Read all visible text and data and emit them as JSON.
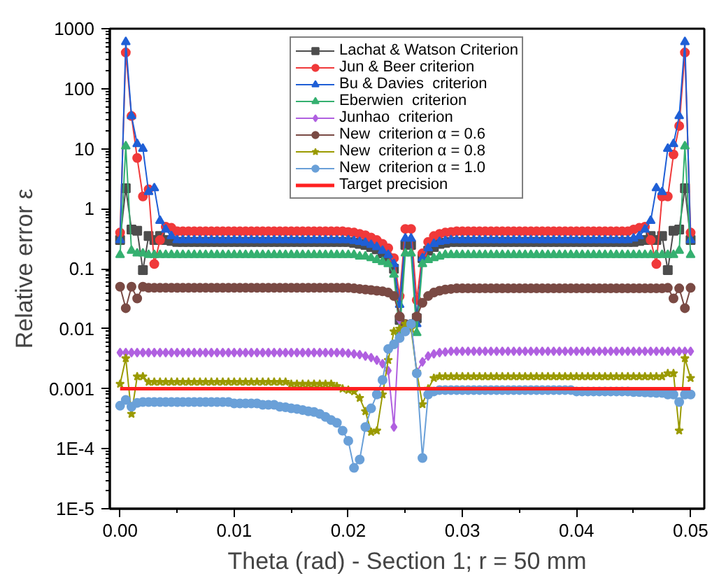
{
  "chart_data": {
    "type": "line",
    "xlabel": "Theta (rad) - Section 1; r = 50 mm",
    "ylabel": "Relative error ε",
    "x": [
      0,
      0.0005,
      0.001,
      0.0015,
      0.002,
      0.0025,
      0.003,
      0.0035,
      0.004,
      0.0045,
      0.005,
      0.0055,
      0.006,
      0.0065,
      0.007,
      0.0075,
      0.008,
      0.0085,
      0.009,
      0.0095,
      0.01,
      0.0105,
      0.011,
      0.0115,
      0.012,
      0.0125,
      0.013,
      0.0135,
      0.014,
      0.0145,
      0.015,
      0.0155,
      0.016,
      0.0165,
      0.017,
      0.0175,
      0.018,
      0.0185,
      0.019,
      0.0195,
      0.02,
      0.0205,
      0.021,
      0.0215,
      0.022,
      0.0225,
      0.023,
      0.0235,
      0.024,
      0.0245,
      0.025,
      0.0255,
      0.026,
      0.0265,
      0.027,
      0.0275,
      0.028,
      0.0285,
      0.029,
      0.0295,
      0.03,
      0.0305,
      0.031,
      0.0315,
      0.032,
      0.0325,
      0.033,
      0.0335,
      0.034,
      0.0345,
      0.035,
      0.0355,
      0.036,
      0.0365,
      0.037,
      0.0375,
      0.038,
      0.0385,
      0.039,
      0.0395,
      0.04,
      0.0405,
      0.041,
      0.0415,
      0.042,
      0.0425,
      0.043,
      0.0435,
      0.044,
      0.0445,
      0.045,
      0.0455,
      0.046,
      0.0465,
      0.047,
      0.0475,
      0.048,
      0.0485,
      0.049,
      0.0495,
      0.05
    ],
    "series": [
      {
        "name": "Lachat & Watson Criterion",
        "color": "#4d4d4d",
        "marker": "square",
        "values": [
          0.3,
          2.2,
          0.45,
          0.43,
          0.095,
          0.35,
          0.3,
          0.35,
          0.3,
          0.29,
          0.28,
          0.28,
          0.28,
          0.28,
          0.28,
          0.28,
          0.28,
          0.28,
          0.28,
          0.28,
          0.28,
          0.28,
          0.28,
          0.28,
          0.28,
          0.28,
          0.28,
          0.28,
          0.28,
          0.28,
          0.28,
          0.28,
          0.28,
          0.28,
          0.28,
          0.28,
          0.28,
          0.28,
          0.28,
          0.28,
          0.28,
          0.27,
          0.26,
          0.25,
          0.23,
          0.21,
          0.18,
          0.15,
          0.1,
          0.014,
          0.25,
          0.25,
          0.015,
          0.15,
          0.2,
          0.23,
          0.26,
          0.27,
          0.28,
          0.28,
          0.28,
          0.28,
          0.28,
          0.28,
          0.28,
          0.28,
          0.28,
          0.28,
          0.28,
          0.28,
          0.28,
          0.28,
          0.28,
          0.28,
          0.28,
          0.28,
          0.28,
          0.28,
          0.28,
          0.28,
          0.28,
          0.28,
          0.28,
          0.28,
          0.28,
          0.28,
          0.28,
          0.28,
          0.28,
          0.28,
          0.28,
          0.29,
          0.3,
          0.35,
          0.3,
          0.35,
          0.095,
          0.43,
          0.45,
          2.2,
          0.3
        ]
      },
      {
        "name": "Jun & Beer criterion",
        "color": "#f0393a",
        "marker": "circle",
        "values": [
          0.4,
          400,
          35,
          7,
          1.6,
          2.1,
          0.12,
          0.3,
          0.5,
          0.48,
          0.42,
          0.42,
          0.42,
          0.42,
          0.42,
          0.42,
          0.42,
          0.42,
          0.42,
          0.42,
          0.42,
          0.42,
          0.42,
          0.42,
          0.42,
          0.42,
          0.42,
          0.42,
          0.42,
          0.42,
          0.42,
          0.42,
          0.42,
          0.42,
          0.42,
          0.42,
          0.42,
          0.42,
          0.42,
          0.42,
          0.41,
          0.4,
          0.38,
          0.36,
          0.33,
          0.3,
          0.26,
          0.22,
          0.15,
          0.035,
          0.46,
          0.46,
          0.03,
          0.18,
          0.28,
          0.35,
          0.38,
          0.4,
          0.41,
          0.42,
          0.42,
          0.42,
          0.42,
          0.42,
          0.42,
          0.42,
          0.42,
          0.42,
          0.42,
          0.42,
          0.42,
          0.42,
          0.42,
          0.42,
          0.42,
          0.42,
          0.42,
          0.42,
          0.42,
          0.42,
          0.42,
          0.42,
          0.42,
          0.42,
          0.42,
          0.42,
          0.42,
          0.42,
          0.42,
          0.42,
          0.45,
          0.48,
          0.5,
          0.3,
          0.12,
          1.6,
          1.6,
          8,
          24,
          400,
          0.4
        ]
      },
      {
        "name": "Bu & Davies  criterion",
        "color": "#1f5fd6",
        "marker": "triangle",
        "values": [
          0.3,
          600,
          35,
          12,
          10,
          1.9,
          2.2,
          0.63,
          0.45,
          0.35,
          0.3,
          0.3,
          0.3,
          0.3,
          0.3,
          0.3,
          0.3,
          0.3,
          0.3,
          0.3,
          0.3,
          0.3,
          0.3,
          0.3,
          0.3,
          0.3,
          0.3,
          0.3,
          0.3,
          0.3,
          0.3,
          0.3,
          0.3,
          0.3,
          0.3,
          0.3,
          0.3,
          0.3,
          0.3,
          0.3,
          0.3,
          0.29,
          0.28,
          0.27,
          0.25,
          0.23,
          0.2,
          0.17,
          0.12,
          0.025,
          0.32,
          0.32,
          0.012,
          0.15,
          0.22,
          0.26,
          0.28,
          0.29,
          0.3,
          0.3,
          0.3,
          0.3,
          0.3,
          0.3,
          0.3,
          0.3,
          0.3,
          0.3,
          0.3,
          0.3,
          0.3,
          0.3,
          0.3,
          0.3,
          0.3,
          0.3,
          0.3,
          0.3,
          0.3,
          0.3,
          0.3,
          0.3,
          0.3,
          0.3,
          0.3,
          0.3,
          0.3,
          0.3,
          0.3,
          0.3,
          0.32,
          0.35,
          0.45,
          0.63,
          2.2,
          1.9,
          10,
          12,
          35,
          600,
          0.3
        ]
      },
      {
        "name": "Eberwien  criterion",
        "color": "#35b070",
        "marker": "triangle",
        "values": [
          0.17,
          11,
          0.2,
          0.18,
          0.18,
          0.17,
          0.17,
          0.17,
          0.17,
          0.17,
          0.17,
          0.17,
          0.17,
          0.17,
          0.17,
          0.17,
          0.17,
          0.17,
          0.17,
          0.17,
          0.17,
          0.17,
          0.17,
          0.17,
          0.17,
          0.17,
          0.17,
          0.17,
          0.17,
          0.17,
          0.17,
          0.17,
          0.17,
          0.17,
          0.17,
          0.17,
          0.17,
          0.17,
          0.17,
          0.17,
          0.17,
          0.17,
          0.16,
          0.16,
          0.15,
          0.14,
          0.13,
          0.12,
          0.08,
          0.0085,
          0.18,
          0.18,
          0.0085,
          0.12,
          0.14,
          0.15,
          0.16,
          0.17,
          0.17,
          0.17,
          0.17,
          0.17,
          0.17,
          0.17,
          0.17,
          0.17,
          0.17,
          0.17,
          0.17,
          0.17,
          0.17,
          0.17,
          0.17,
          0.17,
          0.17,
          0.17,
          0.17,
          0.17,
          0.17,
          0.17,
          0.17,
          0.17,
          0.17,
          0.17,
          0.17,
          0.17,
          0.17,
          0.17,
          0.17,
          0.17,
          0.17,
          0.17,
          0.17,
          0.17,
          0.17,
          0.17,
          0.17,
          0.17,
          0.2,
          11,
          0.17
        ]
      },
      {
        "name": "Junhao  criterion",
        "color": "#b060e0",
        "marker": "diamond",
        "values": [
          0.004,
          0.004,
          0.004,
          0.004,
          0.004,
          0.004,
          0.004,
          0.004,
          0.004,
          0.004,
          0.004,
          0.004,
          0.004,
          0.004,
          0.004,
          0.004,
          0.004,
          0.004,
          0.004,
          0.004,
          0.004,
          0.004,
          0.004,
          0.004,
          0.004,
          0.004,
          0.004,
          0.004,
          0.004,
          0.004,
          0.004,
          0.004,
          0.004,
          0.004,
          0.004,
          0.004,
          0.004,
          0.004,
          0.004,
          0.004,
          0.0039,
          0.0038,
          0.0037,
          0.0035,
          0.0033,
          0.003,
          0.0026,
          0.002,
          0.00023,
          0.014,
          0.012,
          0.012,
          0.0019,
          0.0028,
          0.0035,
          0.0038,
          0.004,
          0.0041,
          0.0042,
          0.0042,
          0.0042,
          0.0042,
          0.0042,
          0.0042,
          0.0042,
          0.0042,
          0.0042,
          0.0042,
          0.0042,
          0.0042,
          0.0042,
          0.0042,
          0.0042,
          0.0042,
          0.0042,
          0.0042,
          0.0042,
          0.0042,
          0.0042,
          0.0042,
          0.0042,
          0.0042,
          0.0042,
          0.0042,
          0.0042,
          0.0042,
          0.0042,
          0.0042,
          0.0042,
          0.0042,
          0.0042,
          0.0042,
          0.0042,
          0.0042,
          0.0042,
          0.0042,
          0.0042,
          0.0042,
          0.0042,
          0.0042,
          0.0042
        ]
      },
      {
        "name": "New  criterion α = 0.6",
        "color": "#7a4a44",
        "marker": "circle",
        "values": [
          0.05,
          0.022,
          0.05,
          0.032,
          0.05,
          0.048,
          0.048,
          0.048,
          0.048,
          0.048,
          0.048,
          0.048,
          0.048,
          0.048,
          0.048,
          0.048,
          0.048,
          0.048,
          0.048,
          0.048,
          0.048,
          0.048,
          0.048,
          0.048,
          0.048,
          0.048,
          0.048,
          0.048,
          0.048,
          0.048,
          0.048,
          0.048,
          0.048,
          0.048,
          0.048,
          0.048,
          0.048,
          0.048,
          0.048,
          0.048,
          0.048,
          0.047,
          0.046,
          0.045,
          0.044,
          0.043,
          0.042,
          0.04,
          0.035,
          0.016,
          0.012,
          0.012,
          0.016,
          0.027,
          0.035,
          0.04,
          0.043,
          0.045,
          0.046,
          0.047,
          0.047,
          0.047,
          0.047,
          0.047,
          0.047,
          0.047,
          0.047,
          0.047,
          0.047,
          0.047,
          0.047,
          0.047,
          0.047,
          0.047,
          0.047,
          0.047,
          0.047,
          0.047,
          0.047,
          0.047,
          0.047,
          0.047,
          0.047,
          0.047,
          0.047,
          0.047,
          0.047,
          0.047,
          0.047,
          0.047,
          0.047,
          0.047,
          0.047,
          0.047,
          0.047,
          0.047,
          0.048,
          0.032,
          0.047,
          0.022,
          0.048
        ]
      },
      {
        "name": "New  criterion α = 0.8",
        "color": "#9a9a00",
        "marker": "star",
        "values": [
          0.0012,
          0.0032,
          0.00038,
          0.0016,
          0.0016,
          0.0013,
          0.0013,
          0.0013,
          0.0013,
          0.0013,
          0.0013,
          0.0013,
          0.0013,
          0.0013,
          0.0013,
          0.0013,
          0.0013,
          0.0013,
          0.0013,
          0.0013,
          0.0013,
          0.0013,
          0.0013,
          0.0013,
          0.0013,
          0.0013,
          0.0013,
          0.0013,
          0.0013,
          0.0013,
          0.0012,
          0.0012,
          0.0012,
          0.0012,
          0.0012,
          0.0012,
          0.0012,
          0.0012,
          0.0011,
          0.001,
          0.00095,
          0.0009,
          0.0007,
          0.00042,
          0.00019,
          0.0002,
          0.0008,
          0.003,
          0.009,
          0.01,
          0.012,
          0.01,
          0.0019,
          0.00055,
          0.001,
          0.0015,
          0.0016,
          0.0016,
          0.0016,
          0.0016,
          0.0016,
          0.0016,
          0.0016,
          0.0016,
          0.0016,
          0.0016,
          0.0016,
          0.0016,
          0.0016,
          0.0016,
          0.0016,
          0.0016,
          0.0016,
          0.0016,
          0.0016,
          0.0016,
          0.0016,
          0.0016,
          0.0016,
          0.0016,
          0.0016,
          0.0016,
          0.0016,
          0.0016,
          0.0016,
          0.0016,
          0.0016,
          0.0016,
          0.0016,
          0.0016,
          0.0016,
          0.0016,
          0.0016,
          0.0016,
          0.0016,
          0.0016,
          0.0018,
          0.0018,
          0.0002,
          0.0032,
          0.0015
        ]
      },
      {
        "name": "New  criterion α = 1.0",
        "color": "#6aa0d8",
        "marker": "circle",
        "values": [
          0.00052,
          0.00065,
          0.0005,
          0.00058,
          0.0006,
          0.0006,
          0.0006,
          0.0006,
          0.0006,
          0.0006,
          0.0006,
          0.0006,
          0.0006,
          0.0006,
          0.0006,
          0.0006,
          0.0006,
          0.0006,
          0.0006,
          0.0006,
          0.00057,
          0.00057,
          0.00057,
          0.00057,
          0.00057,
          0.00054,
          0.00054,
          0.00054,
          0.0005,
          0.00049,
          0.00047,
          0.00046,
          0.00044,
          0.00042,
          0.00041,
          0.00038,
          0.00034,
          0.0003,
          0.00027,
          0.0002,
          0.000135,
          4.8e-05,
          6.6e-05,
          0.00023,
          0.00047,
          0.0008,
          0.0014,
          0.0046,
          0.0055,
          0.007,
          0.009,
          0.012,
          0.0018,
          7e-05,
          0.0008,
          0.0009,
          0.00095,
          0.00095,
          0.00095,
          0.00095,
          0.00095,
          0.00095,
          0.00095,
          0.00095,
          0.00095,
          0.00095,
          0.00095,
          0.00095,
          0.00095,
          0.00095,
          0.00095,
          0.00095,
          0.00095,
          0.00095,
          0.00095,
          0.00095,
          0.00095,
          0.00095,
          0.00095,
          0.00095,
          0.0009,
          0.0009,
          0.0009,
          0.0009,
          0.0009,
          0.0009,
          0.0009,
          0.0009,
          0.0009,
          0.0009,
          0.00088,
          0.00088,
          0.00087,
          0.00086,
          0.00085,
          0.00085,
          0.0008,
          0.0008,
          0.0006,
          0.0008,
          0.0008
        ]
      }
    ],
    "ref_lines": [
      {
        "axis": "y",
        "value": 0.001,
        "label": "Target precision",
        "color": "#ff2020"
      }
    ],
    "log": "y",
    "xlim": [
      -0.0009,
      0.0512
    ],
    "ylim": [
      1e-05,
      1000
    ],
    "xticks": [
      {
        "value": 0,
        "label": "0.00"
      },
      {
        "value": 0.01,
        "label": "0.01"
      },
      {
        "value": 0.02,
        "label": "0.02"
      },
      {
        "value": 0.03,
        "label": "0.03"
      },
      {
        "value": 0.04,
        "label": "0.04"
      },
      {
        "value": 0.05,
        "label": "0.05"
      }
    ],
    "yticks": [
      {
        "value": 1e-05,
        "label": "1E-5"
      },
      {
        "value": 0.0001,
        "label": "1E-4"
      },
      0.001,
      0.01,
      0.1,
      1,
      10,
      100,
      1000
    ],
    "grid": false,
    "legend": "top",
    "line_style": "solid"
  }
}
